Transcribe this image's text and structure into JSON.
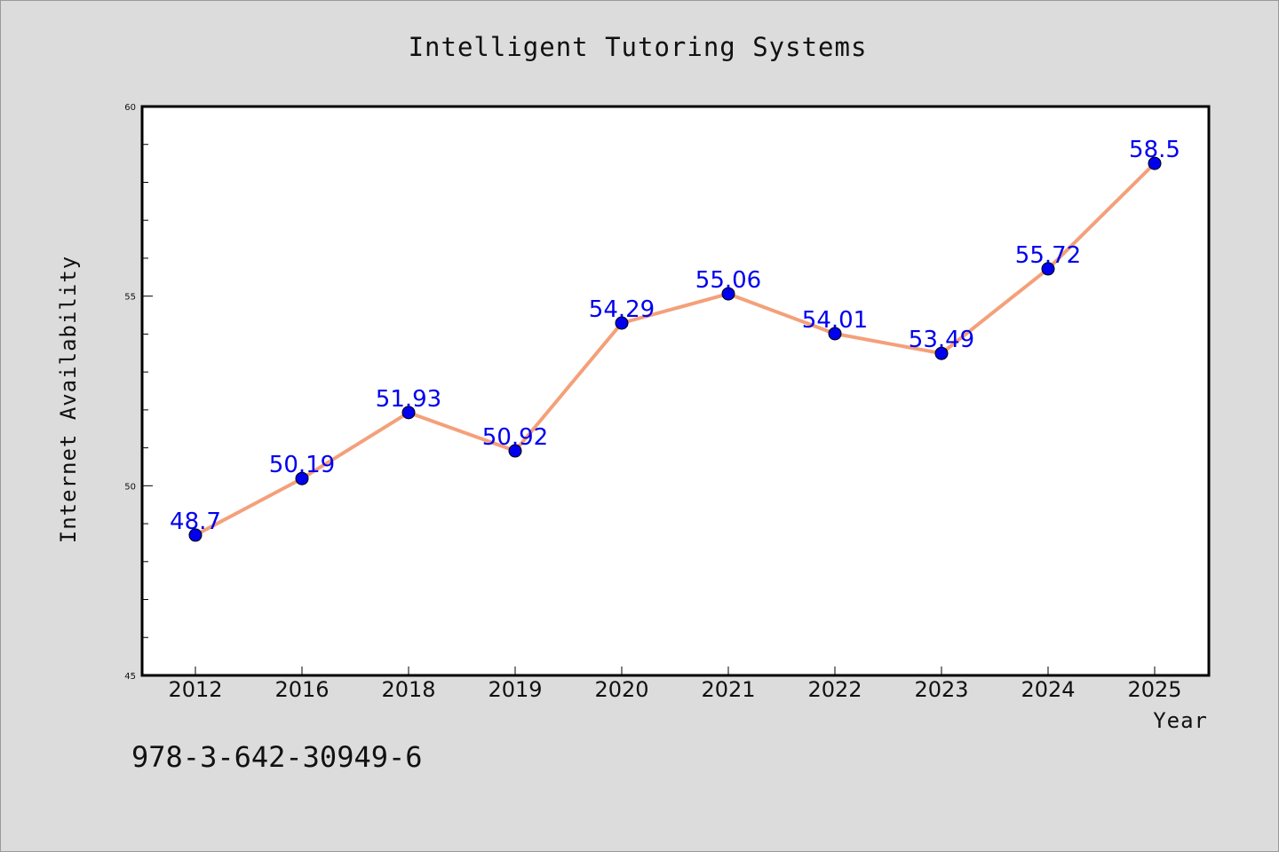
{
  "chart_data": {
    "type": "line",
    "title": "Intelligent Tutoring Systems",
    "xlabel": "Year",
    "ylabel": "Internet Availability",
    "categories": [
      "2012",
      "2016",
      "2018",
      "2019",
      "2020",
      "2021",
      "2022",
      "2023",
      "2024",
      "2025"
    ],
    "series": [
      {
        "values": [
          48.7,
          50.19,
          51.93,
          50.92,
          54.29,
          55.06,
          54.01,
          53.49,
          55.72,
          58.5
        ],
        "labels": [
          "48.7",
          "50.19",
          "51.93",
          "50.92",
          "54.29",
          "55.06",
          "54.01",
          "53.49",
          "55.72",
          "58.5"
        ]
      }
    ],
    "ylim": [
      45,
      60
    ],
    "yticks": [
      "45",
      "50",
      "55",
      "60"
    ],
    "line_color": "#f4a07a",
    "marker_color": "#0000ee",
    "label_color": "#0000ee",
    "grid": false,
    "legend": "none"
  },
  "annotation": {
    "isbn": "978-3-642-30949-6"
  },
  "colors": {
    "background": "#dcdcdc",
    "plot_background": "#ffffff"
  }
}
